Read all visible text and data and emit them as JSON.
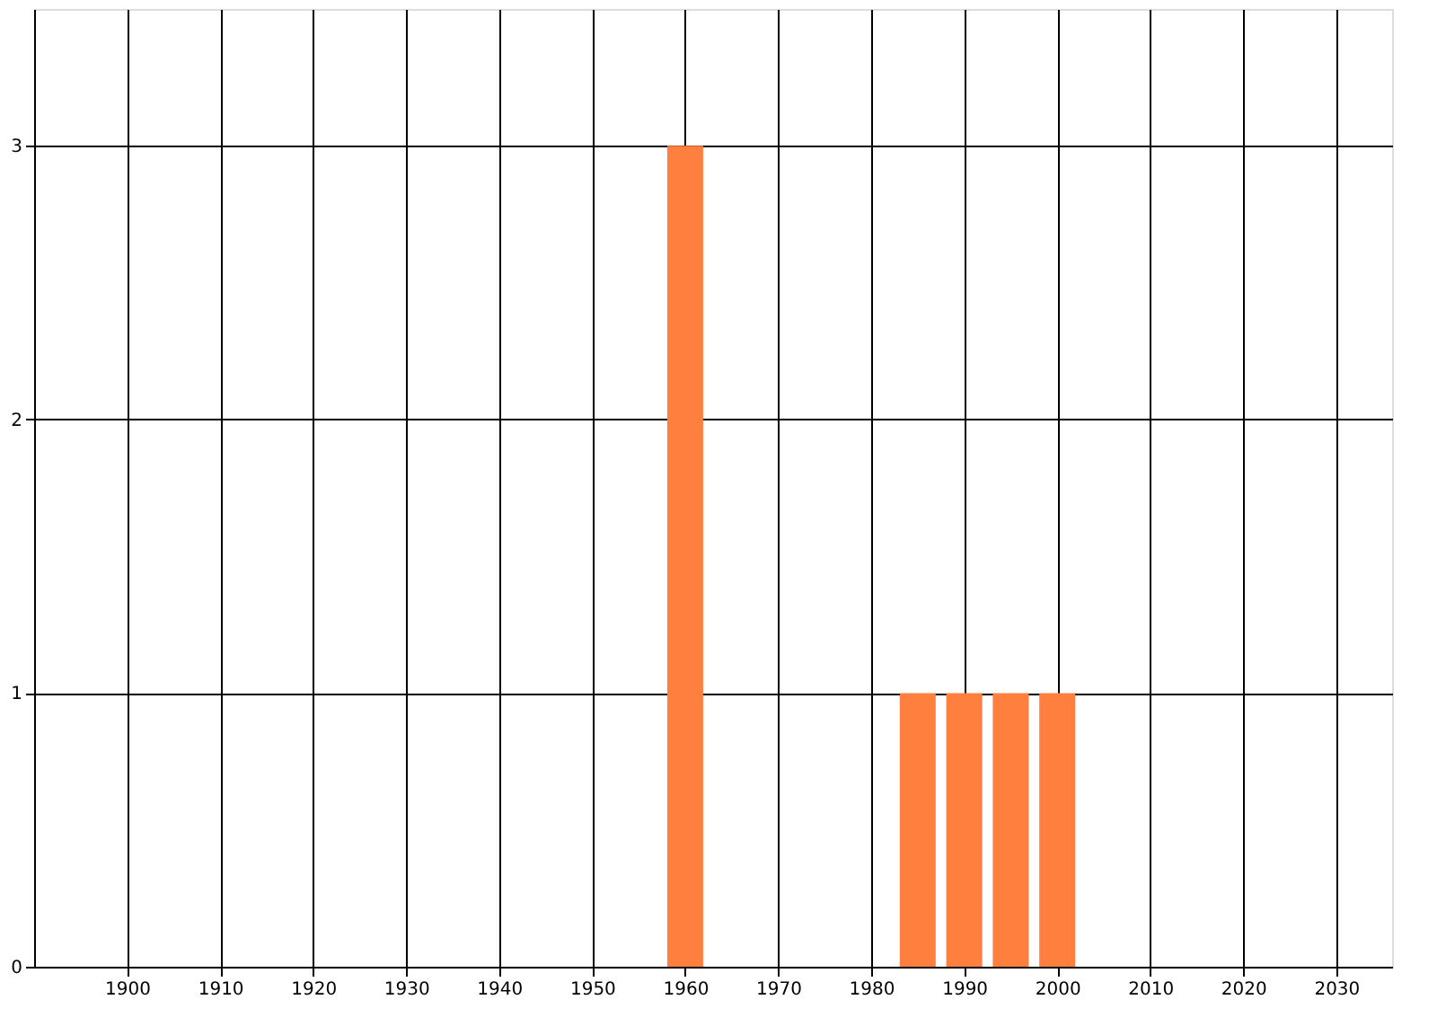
{
  "chart_data": {
    "type": "bar",
    "x": [
      1960,
      1985,
      1990,
      1995,
      2000
    ],
    "series": [
      {
        "color": "#ff7f3f",
        "values": [
          3,
          1,
          1,
          1,
          1
        ]
      }
    ],
    "xlim": [
      1890,
      2036
    ],
    "xticks": [
      1900,
      1910,
      1920,
      1930,
      1940,
      1950,
      1960,
      1970,
      1980,
      1990,
      2000,
      2010,
      2020,
      2030
    ],
    "ylim": [
      0,
      3.5
    ],
    "yticks": [
      0,
      1,
      2,
      3
    ],
    "grid": true
  }
}
